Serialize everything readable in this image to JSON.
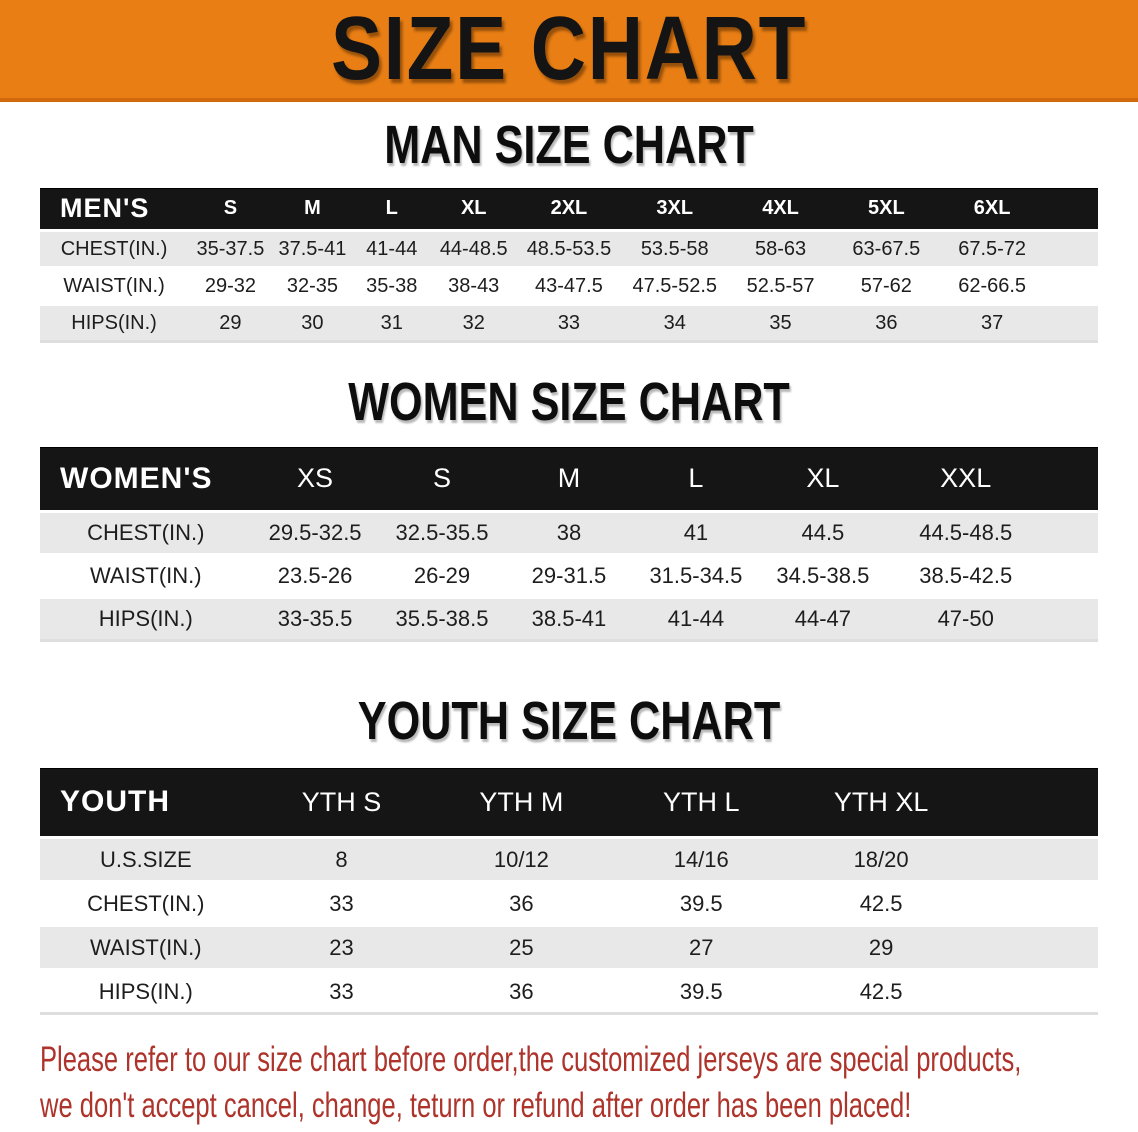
{
  "banner": {
    "title": "SIZE CHART"
  },
  "sections": [
    {
      "title": "MAN SIZE CHART",
      "table": {
        "header_label": "MEN'S",
        "sizes": [
          "S",
          "M",
          "L",
          "XL",
          "2XL",
          "3XL",
          "4XL",
          "5XL",
          "6XL"
        ],
        "rows": [
          {
            "label": "CHEST(IN.)",
            "values": [
              "35-37.5",
              "37.5-41",
              "41-44",
              "44-48.5",
              "48.5-53.5",
              "53.5-58",
              "58-63",
              "63-67.5",
              "67.5-72"
            ]
          },
          {
            "label": "WAIST(IN.)",
            "values": [
              "29-32",
              "32-35",
              "35-38",
              "38-43",
              "43-47.5",
              "47.5-52.5",
              "52.5-57",
              "57-62",
              "62-66.5"
            ]
          },
          {
            "label": "HIPS(IN.)",
            "values": [
              "29",
              "30",
              "31",
              "32",
              "33",
              "34",
              "35",
              "36",
              "37"
            ]
          }
        ]
      }
    },
    {
      "title": "WOMEN SIZE CHART",
      "table": {
        "header_label": "WOMEN'S",
        "sizes": [
          "XS",
          "S",
          "M",
          "L",
          "XL",
          "XXL"
        ],
        "rows": [
          {
            "label": "CHEST(IN.)",
            "values": [
              "29.5-32.5",
              "32.5-35.5",
              "38",
              "41",
              "44.5",
              "44.5-48.5"
            ]
          },
          {
            "label": "WAIST(IN.)",
            "values": [
              "23.5-26",
              "26-29",
              "29-31.5",
              "31.5-34.5",
              "34.5-38.5",
              "38.5-42.5"
            ]
          },
          {
            "label": "HIPS(IN.)",
            "values": [
              "33-35.5",
              "35.5-38.5",
              "38.5-41",
              "41-44",
              "44-47",
              "47-50"
            ]
          }
        ]
      }
    },
    {
      "title": "YOUTH SIZE CHART",
      "table": {
        "header_label": "YOUTH",
        "sizes": [
          "YTH S",
          "YTH M",
          "YTH L",
          "YTH XL"
        ],
        "rows": [
          {
            "label": "U.S.SIZE",
            "values": [
              "8",
              "10/12",
              "14/16",
              "18/20"
            ]
          },
          {
            "label": "CHEST(IN.)",
            "values": [
              "33",
              "36",
              "39.5",
              "42.5"
            ]
          },
          {
            "label": "WAIST(IN.)",
            "values": [
              "23",
              "25",
              "27",
              "29"
            ]
          },
          {
            "label": "HIPS(IN.)",
            "values": [
              "33",
              "36",
              "39.5",
              "42.5"
            ]
          }
        ]
      }
    }
  ],
  "disclaimer": {
    "line1": "Please refer to our size chart before order,the customized jerseys are special products,",
    "line2": "we don't accept cancel, change, teturn or refund after order has been placed!"
  },
  "colors": {
    "banner_orange": "#E87E14",
    "banner_edge": "#D2690C",
    "header_black": "#151515",
    "row_gray": "#e8e8e8",
    "disclaimer_red": "#AD332B"
  }
}
